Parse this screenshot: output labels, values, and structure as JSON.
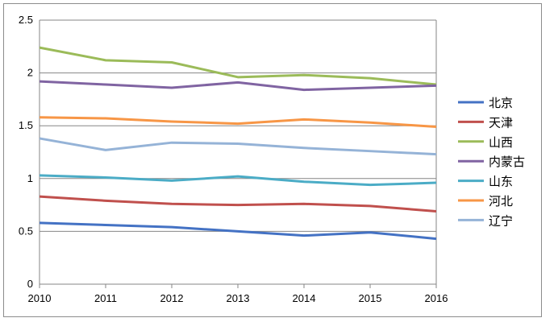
{
  "chart_data": {
    "type": "line",
    "title": "",
    "xlabel": "",
    "ylabel": "",
    "categories": [
      "2010",
      "2011",
      "2012",
      "2013",
      "2014",
      "2015",
      "2016"
    ],
    "y_ticks": [
      "0",
      "0.5",
      "1",
      "1.5",
      "2",
      "2.5"
    ],
    "ylim": [
      0,
      2.5
    ],
    "grid": true,
    "legend_position": "right",
    "series": [
      {
        "name": "北京",
        "color": "#4472c4",
        "values": [
          0.58,
          0.56,
          0.54,
          0.5,
          0.46,
          0.49,
          0.43
        ]
      },
      {
        "name": "天津",
        "color": "#c0504d",
        "values": [
          0.83,
          0.79,
          0.76,
          0.75,
          0.76,
          0.74,
          0.69
        ]
      },
      {
        "name": "山西",
        "color": "#9bbb59",
        "values": [
          2.24,
          2.12,
          2.1,
          1.96,
          1.98,
          1.95,
          1.89
        ]
      },
      {
        "name": "内蒙古",
        "color": "#8064a2",
        "values": [
          1.92,
          1.89,
          1.86,
          1.91,
          1.84,
          1.86,
          1.88
        ]
      },
      {
        "name": "山东",
        "color": "#4bacc6",
        "values": [
          1.03,
          1.01,
          0.98,
          1.02,
          0.97,
          0.94,
          0.96
        ]
      },
      {
        "name": "河北",
        "color": "#f79646",
        "values": [
          1.58,
          1.57,
          1.54,
          1.52,
          1.56,
          1.53,
          1.49
        ]
      },
      {
        "name": "辽宁",
        "color": "#95b3d7",
        "values": [
          1.38,
          1.27,
          1.34,
          1.33,
          1.29,
          1.26,
          1.23
        ]
      }
    ]
  }
}
